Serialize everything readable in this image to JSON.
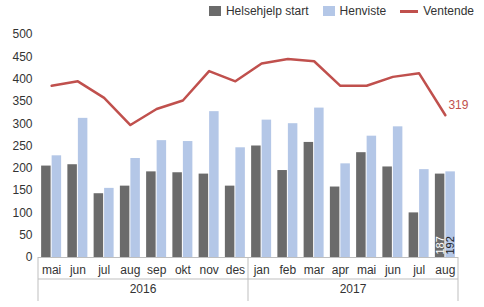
{
  "chart_data": {
    "type": "bar",
    "categories": [
      "mai",
      "jun",
      "jul",
      "aug",
      "sep",
      "okt",
      "nov",
      "des",
      "jan",
      "feb",
      "mar",
      "apr",
      "mai",
      "jun",
      "jul",
      "aug"
    ],
    "groups": [
      {
        "label": "2016",
        "count": 8
      },
      {
        "label": "2017",
        "count": 8
      }
    ],
    "series": [
      {
        "name": "Helsehjelp start",
        "type": "bar",
        "color": "#6b6b6b",
        "values": [
          205,
          208,
          143,
          160,
          192,
          190,
          187,
          160,
          250,
          195,
          258,
          158,
          235,
          203,
          100,
          187
        ],
        "value_labels": [
          null,
          null,
          null,
          null,
          null,
          null,
          null,
          null,
          null,
          null,
          null,
          null,
          null,
          null,
          null,
          "187"
        ]
      },
      {
        "name": "Henviste",
        "type": "bar",
        "color": "#b4c7e7",
        "values": [
          228,
          312,
          155,
          222,
          262,
          260,
          327,
          246,
          308,
          300,
          335,
          210,
          272,
          293,
          197,
          192
        ],
        "value_labels": [
          null,
          null,
          null,
          null,
          null,
          null,
          null,
          null,
          null,
          null,
          null,
          null,
          null,
          null,
          null,
          "192"
        ]
      },
      {
        "name": "Ventende",
        "type": "line",
        "color": "#c0504d",
        "values": [
          385,
          395,
          358,
          297,
          333,
          352,
          418,
          395,
          435,
          445,
          440,
          385,
          385,
          405,
          413,
          319
        ],
        "value_labels": [
          null,
          null,
          null,
          null,
          null,
          null,
          null,
          null,
          null,
          null,
          null,
          null,
          null,
          null,
          null,
          "319"
        ]
      }
    ],
    "ylim": [
      0,
      500
    ],
    "yticks": [
      0,
      50,
      100,
      150,
      200,
      250,
      300,
      350,
      400,
      450,
      500
    ],
    "grid": false,
    "legend": "top-right"
  }
}
